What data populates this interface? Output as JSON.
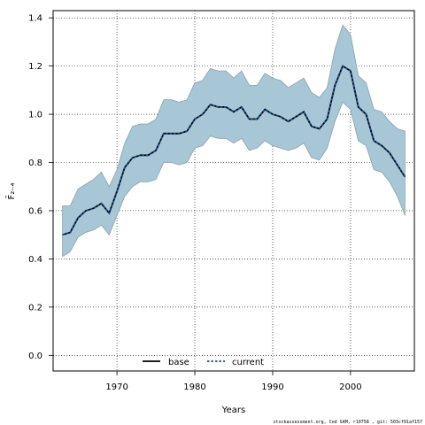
{
  "chart_data": {
    "type": "line",
    "xlabel": "Years",
    "ylabel": "F̄₂₋₄",
    "xlim": [
      1961.8,
      2008.2
    ],
    "ylim": [
      -0.065,
      1.43
    ],
    "xticks": [
      1970,
      1980,
      1990,
      2000
    ],
    "yticks": [
      "0.0",
      "0.2",
      "0.4",
      "0.6",
      "0.8",
      "1.0",
      "1.2",
      "1.4"
    ],
    "grid": true,
    "legend": {
      "placement": "bottom-center",
      "entries": [
        "base",
        "current"
      ]
    },
    "colors": {
      "band": "#a7c7d7",
      "band_edge": "#8aa0ad",
      "base": "#000000",
      "current": "#1f4e8c"
    },
    "x": [
      1963,
      1964,
      1965,
      1966,
      1967,
      1968,
      1969,
      1970,
      1971,
      1972,
      1973,
      1974,
      1975,
      1976,
      1977,
      1978,
      1979,
      1980,
      1981,
      1982,
      1983,
      1984,
      1985,
      1986,
      1987,
      1988,
      1989,
      1990,
      1991,
      1992,
      1993,
      1994,
      1995,
      1996,
      1997,
      1998,
      1999,
      2000,
      2001,
      2002,
      2003,
      2004,
      2005,
      2006,
      2007
    ],
    "series": [
      {
        "name": "base",
        "values": [
          0.5,
          0.51,
          0.57,
          0.6,
          0.61,
          0.63,
          0.59,
          0.68,
          0.78,
          0.82,
          0.83,
          0.83,
          0.85,
          0.92,
          0.92,
          0.92,
          0.93,
          0.98,
          1.0,
          1.04,
          1.03,
          1.03,
          1.01,
          1.03,
          0.98,
          0.98,
          1.02,
          1.0,
          0.99,
          0.97,
          0.99,
          1.01,
          0.95,
          0.94,
          0.98,
          1.12,
          1.2,
          1.18,
          1.03,
          1.0,
          0.89,
          0.87,
          0.84,
          0.79,
          0.74
        ]
      },
      {
        "name": "current",
        "values": [
          0.5,
          0.51,
          0.57,
          0.6,
          0.61,
          0.63,
          0.59,
          0.68,
          0.78,
          0.82,
          0.83,
          0.83,
          0.85,
          0.92,
          0.92,
          0.92,
          0.93,
          0.98,
          1.0,
          1.04,
          1.03,
          1.03,
          1.01,
          1.03,
          0.98,
          0.98,
          1.02,
          1.0,
          0.99,
          0.97,
          0.99,
          1.01,
          0.95,
          0.94,
          0.98,
          1.12,
          1.2,
          1.18,
          1.03,
          1.0,
          0.89,
          0.87,
          0.84,
          0.79,
          0.74
        ]
      }
    ],
    "band_upper": [
      0.62,
      0.62,
      0.69,
      0.71,
      0.73,
      0.76,
      0.7,
      0.77,
      0.88,
      0.95,
      0.96,
      0.96,
      0.98,
      1.06,
      1.06,
      1.05,
      1.06,
      1.13,
      1.14,
      1.19,
      1.18,
      1.18,
      1.15,
      1.18,
      1.12,
      1.12,
      1.17,
      1.15,
      1.14,
      1.11,
      1.13,
      1.15,
      1.09,
      1.07,
      1.11,
      1.27,
      1.37,
      1.33,
      1.16,
      1.13,
      1.02,
      1.01,
      0.97,
      0.94,
      0.93
    ],
    "band_lower": [
      0.41,
      0.43,
      0.49,
      0.51,
      0.52,
      0.54,
      0.5,
      0.58,
      0.66,
      0.7,
      0.72,
      0.72,
      0.73,
      0.8,
      0.8,
      0.79,
      0.8,
      0.86,
      0.87,
      0.91,
      0.9,
      0.9,
      0.88,
      0.9,
      0.85,
      0.86,
      0.89,
      0.87,
      0.86,
      0.85,
      0.86,
      0.88,
      0.82,
      0.81,
      0.86,
      0.97,
      1.05,
      1.02,
      0.89,
      0.87,
      0.77,
      0.76,
      0.72,
      0.66,
      0.58
    ]
  },
  "footer": "stockassessment.org, Cod SAM, r10758 , git: 503cf91af157"
}
